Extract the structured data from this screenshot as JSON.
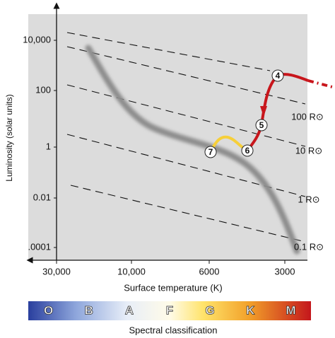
{
  "y_axis": {
    "label": "Luminosity (solar units)",
    "ticks": [
      "10,000",
      "100",
      "1",
      "0.01",
      ".0001"
    ]
  },
  "x_axis": {
    "label": "Surface temperature (K)",
    "ticks": [
      "30,000",
      "10,000",
      "6000",
      "3000"
    ]
  },
  "radius_lines": [
    "100 R⊙",
    "10 R⊙",
    "1 R⊙",
    "0.1 R⊙"
  ],
  "stages": [
    "4",
    "5",
    "6",
    "7"
  ],
  "spectral": {
    "classes": [
      "O",
      "B",
      "A",
      "F",
      "G",
      "K",
      "M"
    ],
    "label": "Spectral classification"
  }
}
